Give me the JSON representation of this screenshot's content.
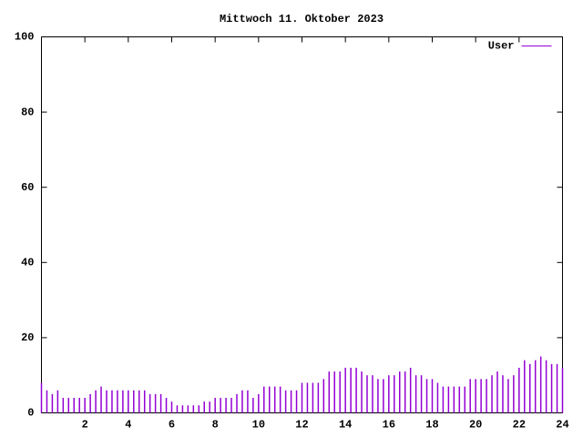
{
  "chart_data": {
    "type": "impulses",
    "title": "Mittwoch 11. Oktober 2023",
    "series": [
      {
        "name": "User",
        "color": "#9400d3",
        "values": [
          8,
          6,
          5,
          6,
          4,
          4,
          4,
          4,
          4,
          5,
          6,
          7,
          6,
          6,
          6,
          6,
          6,
          6,
          6,
          6,
          5,
          5,
          5,
          4,
          3,
          2,
          2,
          2,
          2,
          2,
          3,
          3,
          4,
          4,
          4,
          4,
          5,
          6,
          6,
          4,
          5,
          7,
          7,
          7,
          7,
          6,
          6,
          6,
          8,
          8,
          8,
          8,
          9,
          11,
          11,
          11,
          12,
          12,
          12,
          11,
          10,
          10,
          9,
          9,
          10,
          10,
          11,
          11,
          12,
          10,
          10,
          9,
          9,
          8,
          7,
          7,
          7,
          7,
          7,
          9,
          9,
          9,
          9,
          10,
          11,
          10,
          9,
          10,
          12,
          14,
          13,
          14,
          15,
          14,
          13,
          13,
          12
        ]
      }
    ],
    "x": [
      0,
      0.25,
      0.5,
      0.75,
      1,
      1.25,
      1.5,
      1.75,
      2,
      2.25,
      2.5,
      2.75,
      3,
      3.25,
      3.5,
      3.75,
      4,
      4.25,
      4.5,
      4.75,
      5,
      5.25,
      5.5,
      5.75,
      6,
      6.25,
      6.5,
      6.75,
      7,
      7.25,
      7.5,
      7.75,
      8,
      8.25,
      8.5,
      8.75,
      9,
      9.25,
      9.5,
      9.75,
      10,
      10.25,
      10.5,
      10.75,
      11,
      11.25,
      11.5,
      11.75,
      12,
      12.25,
      12.5,
      12.75,
      13,
      13.25,
      13.5,
      13.75,
      14,
      14.25,
      14.5,
      14.75,
      15,
      15.25,
      15.5,
      15.75,
      16,
      16.25,
      16.5,
      16.75,
      17,
      17.25,
      17.5,
      17.75,
      18,
      18.25,
      18.5,
      18.75,
      19,
      19.25,
      19.5,
      19.75,
      20,
      20.25,
      20.5,
      20.75,
      21,
      21.25,
      21.5,
      21.75,
      22,
      22.25,
      22.5,
      22.75,
      23,
      23.25,
      23.5,
      23.75,
      24
    ],
    "xlim": [
      0,
      24
    ],
    "xticks": [
      2,
      4,
      6,
      8,
      10,
      12,
      14,
      16,
      18,
      20,
      22,
      24
    ],
    "ylim": [
      0,
      100
    ],
    "yticks": [
      0,
      20,
      40,
      60,
      80,
      100
    ],
    "legend": "top right"
  }
}
